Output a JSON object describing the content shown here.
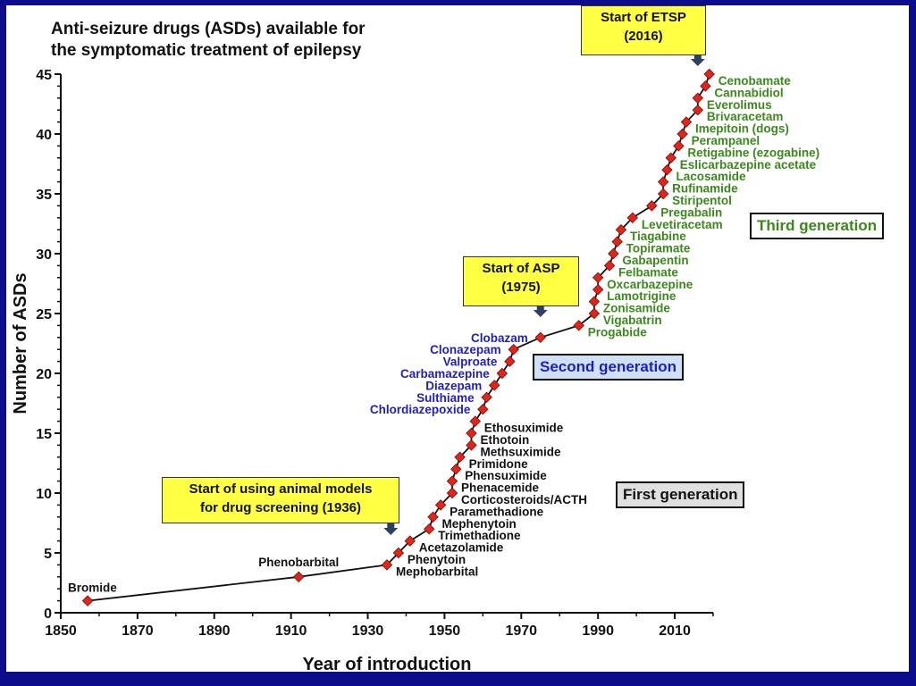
{
  "colors": {
    "background": "#0d0d8c",
    "first_gen": "#111111",
    "second_gen": "#1f1fbf",
    "third_gen": "#3a8a1a",
    "marker": "#e0261b",
    "callout": "#ffff44",
    "second_box": "#cfe0f7",
    "first_box": "#e0e0e0"
  },
  "title_lines": [
    "Anti-seizure drugs (ASDs) available for",
    "the symptomatic treatment of epilepsy"
  ],
  "callouts": {
    "animal_models": [
      "Start of using animal models",
      "for drug screening (1936)"
    ],
    "asp": [
      "Start of ASP",
      "(1975)"
    ],
    "etsp": [
      "Start of ETSP",
      "(2016)"
    ]
  },
  "generation_labels": {
    "first": "First generation",
    "second": "Second generation",
    "third": "Third generation"
  },
  "chart_data": {
    "type": "line",
    "title": "Anti-seizure drugs (ASDs) available for the symptomatic treatment of epilepsy",
    "xlabel": "Year of introduction",
    "ylabel": "Number of ASDs",
    "xlim": [
      1850,
      2020
    ],
    "ylim": [
      0,
      45
    ],
    "xticks": [
      1850,
      1870,
      1890,
      1910,
      1930,
      1950,
      1970,
      1990,
      2010
    ],
    "yticks": [
      0,
      5,
      10,
      15,
      20,
      25,
      30,
      35,
      40,
      45
    ],
    "grid": false,
    "points": [
      {
        "x": 1857,
        "y": 1,
        "label": "Bromide",
        "gen": 1
      },
      {
        "x": 1912,
        "y": 3,
        "label": "Phenobarbital",
        "gen": 1
      },
      {
        "x": 1935,
        "y": 4,
        "label": "Mephobarbital",
        "gen": 1
      },
      {
        "x": 1938,
        "y": 5,
        "label": "Phenytoin",
        "gen": 1
      },
      {
        "x": 1941,
        "y": 6,
        "label": "Acetazolamide",
        "gen": 1
      },
      {
        "x": 1946,
        "y": 7,
        "label": "Trimethadione",
        "gen": 1
      },
      {
        "x": 1947,
        "y": 8,
        "label": "Mephenytoin",
        "gen": 1
      },
      {
        "x": 1949,
        "y": 9,
        "label": "Paramethadione",
        "gen": 1
      },
      {
        "x": 1952,
        "y": 10,
        "label": "Corticosteroids/ACTH",
        "gen": 1
      },
      {
        "x": 1952,
        "y": 11,
        "label": "Phenacemide",
        "gen": 1
      },
      {
        "x": 1953,
        "y": 12,
        "label": "Phensuximide",
        "gen": 1
      },
      {
        "x": 1954,
        "y": 13,
        "label": "Primidone",
        "gen": 1
      },
      {
        "x": 1957,
        "y": 14,
        "label": "Methsuximide",
        "gen": 1
      },
      {
        "x": 1957,
        "y": 15,
        "label": "Ethotoin",
        "gen": 1
      },
      {
        "x": 1958,
        "y": 16,
        "label": "Ethosuximide",
        "gen": 1
      },
      {
        "x": 1960,
        "y": 17,
        "label": "Chlordiazepoxide",
        "gen": 2
      },
      {
        "x": 1961,
        "y": 18,
        "label": "Sulthiame",
        "gen": 2
      },
      {
        "x": 1963,
        "y": 19,
        "label": "Diazepam",
        "gen": 2
      },
      {
        "x": 1965,
        "y": 20,
        "label": "Carbamazepine",
        "gen": 2
      },
      {
        "x": 1967,
        "y": 21,
        "label": "Valproate",
        "gen": 2
      },
      {
        "x": 1968,
        "y": 22,
        "label": "Clonazepam",
        "gen": 2
      },
      {
        "x": 1975,
        "y": 23,
        "label": "Clobazam",
        "gen": 2
      },
      {
        "x": 1985,
        "y": 24,
        "label": "Progabide",
        "gen": 3
      },
      {
        "x": 1989,
        "y": 25,
        "label": "Vigabatrin",
        "gen": 3
      },
      {
        "x": 1989,
        "y": 26,
        "label": "Zonisamide",
        "gen": 3
      },
      {
        "x": 1990,
        "y": 27,
        "label": "Lamotrigine",
        "gen": 3
      },
      {
        "x": 1990,
        "y": 28,
        "label": "Oxcarbazepine",
        "gen": 3
      },
      {
        "x": 1993,
        "y": 29,
        "label": "Felbamate",
        "gen": 3
      },
      {
        "x": 1994,
        "y": 30,
        "label": "Gabapentin",
        "gen": 3
      },
      {
        "x": 1995,
        "y": 31,
        "label": "Topiramate",
        "gen": 3
      },
      {
        "x": 1996,
        "y": 32,
        "label": "Tiagabine",
        "gen": 3
      },
      {
        "x": 1999,
        "y": 33,
        "label": "Levetiracetam",
        "gen": 3
      },
      {
        "x": 2004,
        "y": 34,
        "label": "Pregabalin",
        "gen": 3
      },
      {
        "x": 2007,
        "y": 35,
        "label": "Stiripentol",
        "gen": 3
      },
      {
        "x": 2007,
        "y": 36,
        "label": "Rufinamide",
        "gen": 3
      },
      {
        "x": 2008,
        "y": 37,
        "label": "Lacosamide",
        "gen": 3
      },
      {
        "x": 2009,
        "y": 38,
        "label": "Eslicarbazepine acetate",
        "gen": 3
      },
      {
        "x": 2011,
        "y": 39,
        "label": "Retigabine (ezogabine)",
        "gen": 3
      },
      {
        "x": 2012,
        "y": 40,
        "label": "Perampanel",
        "gen": 3
      },
      {
        "x": 2013,
        "y": 41,
        "label": "Imepitoin (dogs)",
        "gen": 3
      },
      {
        "x": 2016,
        "y": 42,
        "label": "Brivaracetam",
        "gen": 3
      },
      {
        "x": 2016,
        "y": 43,
        "label": "Everolimus",
        "gen": 3
      },
      {
        "x": 2018,
        "y": 44,
        "label": "Cannabidiol",
        "gen": 3
      },
      {
        "x": 2019,
        "y": 45,
        "label": "Cenobamate",
        "gen": 3
      }
    ]
  }
}
